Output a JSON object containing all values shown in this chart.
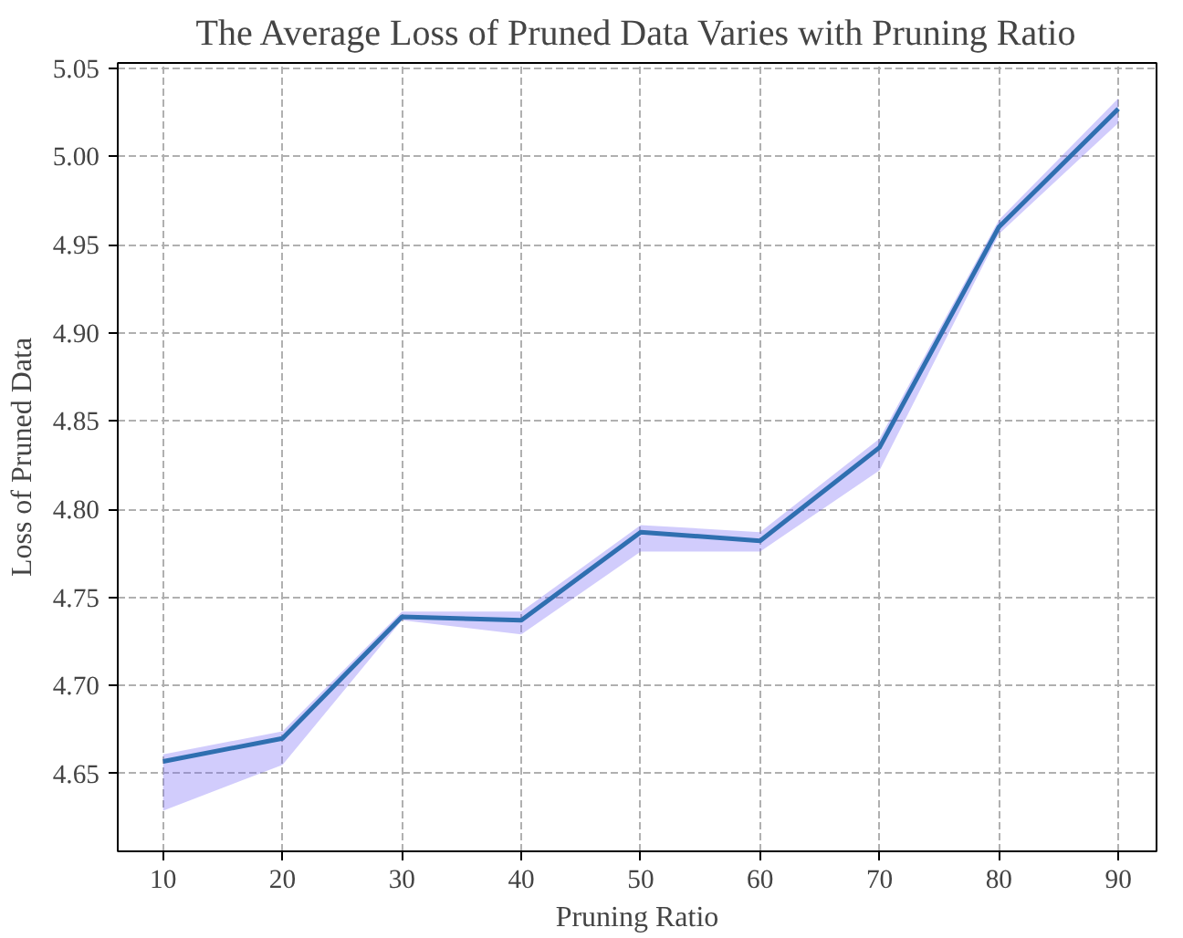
{
  "chart_data": {
    "type": "line",
    "title": "The Average Loss of Pruned Data Varies with Pruning Ratio",
    "xlabel": "Pruning Ratio",
    "ylabel": "Loss of Pruned Data",
    "x": [
      10,
      20,
      30,
      40,
      50,
      60,
      70,
      80,
      90
    ],
    "series": [
      {
        "color": "#2f6fb0",
        "values": [
          4.657,
          4.67,
          4.739,
          4.737,
          4.787,
          4.782,
          4.835,
          4.96,
          5.027
        ],
        "lower": [
          4.629,
          4.655,
          4.737,
          4.729,
          4.776,
          4.776,
          4.822,
          4.956,
          5.019
        ],
        "upper": [
          4.661,
          4.674,
          4.742,
          4.742,
          4.791,
          4.787,
          4.84,
          4.964,
          5.033
        ]
      }
    ],
    "xlim": [
      6.2,
      93.2
    ],
    "ylim": [
      4.606,
      5.053
    ],
    "xticks": [
      10,
      20,
      30,
      40,
      50,
      60,
      70,
      80,
      90
    ],
    "yticks": [
      {
        "value": 4.65,
        "label": "4.65"
      },
      {
        "value": 4.7,
        "label": "4.70"
      },
      {
        "value": 4.75,
        "label": "4.75"
      },
      {
        "value": 4.8,
        "label": "4.80"
      },
      {
        "value": 4.85,
        "label": "4.85"
      },
      {
        "value": 4.9,
        "label": "4.90"
      },
      {
        "value": 4.95,
        "label": "4.95"
      },
      {
        "value": 5.0,
        "label": "5.00"
      },
      {
        "value": 5.05,
        "label": "5.05"
      }
    ],
    "grid": true
  }
}
